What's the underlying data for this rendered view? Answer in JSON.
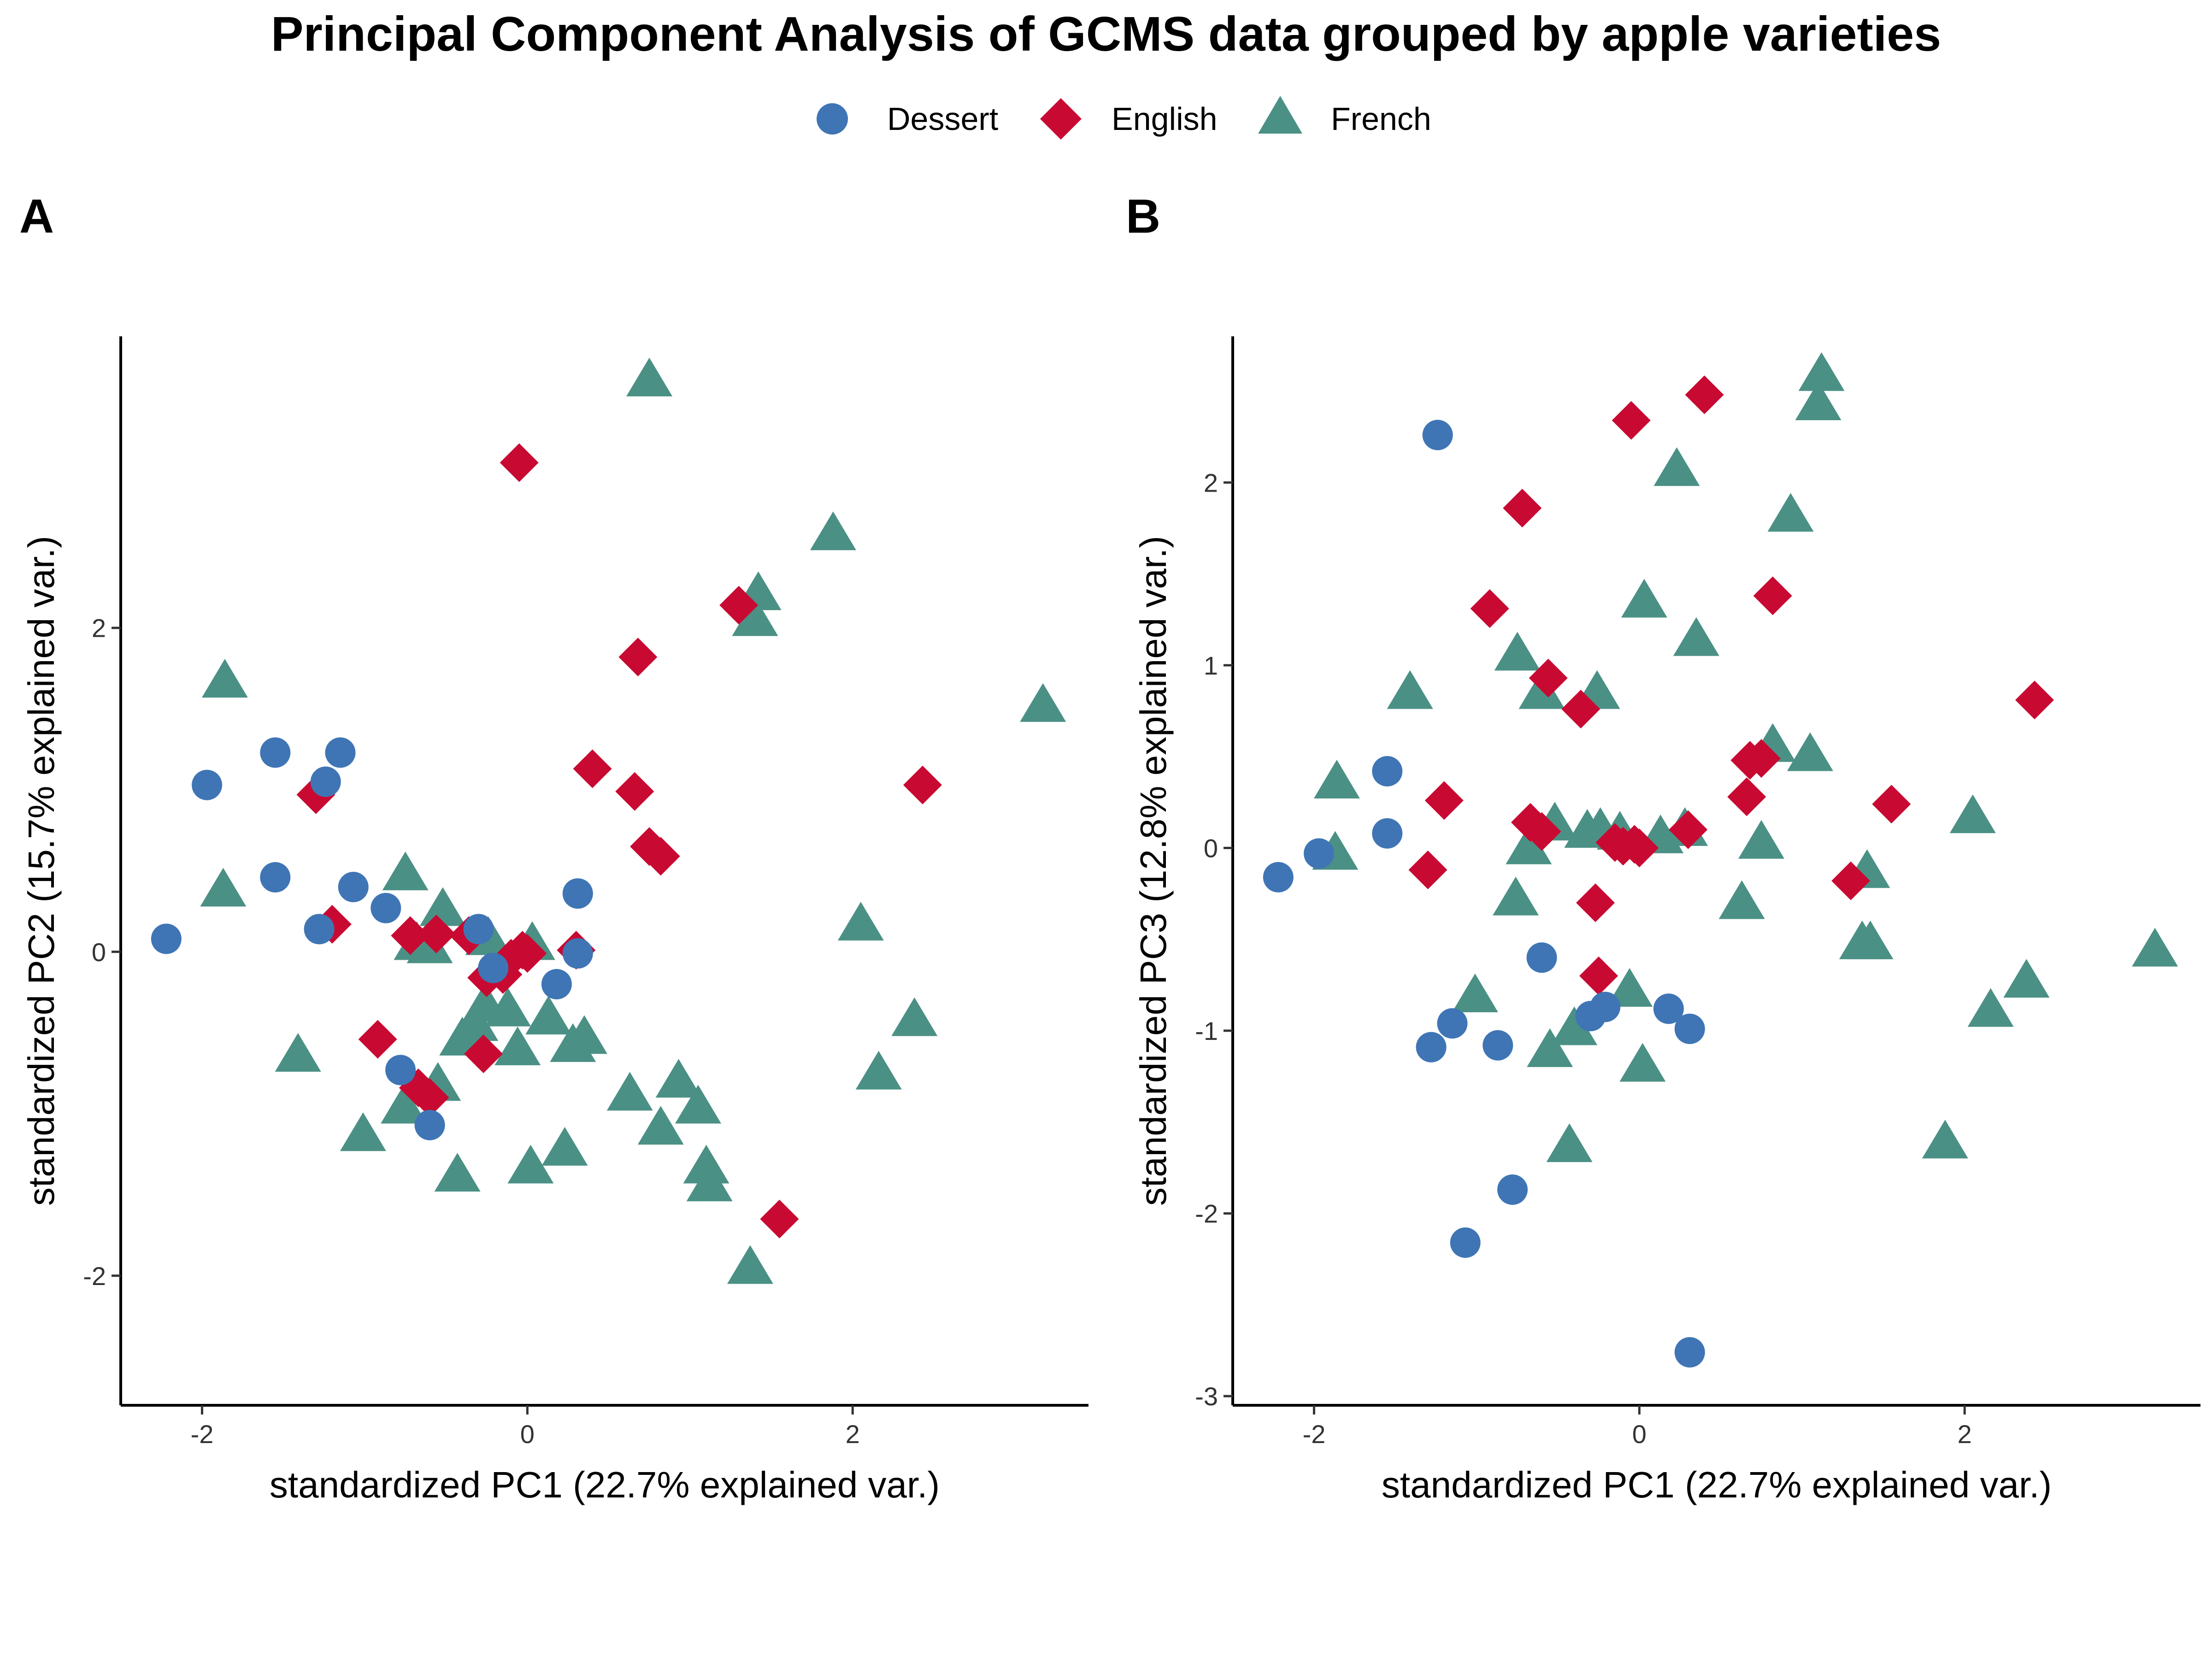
{
  "colors": {
    "Dessert": "#3F75B5",
    "English": "#C80A32",
    "French": "#4B9085"
  },
  "chart_data": {
    "title": "Principal Component Analysis of GCMS data grouped by apple varieties",
    "legend": {
      "placement": "top",
      "entries": [
        {
          "name": "Dessert",
          "shape": "circle"
        },
        {
          "name": "English",
          "shape": "diamond"
        },
        {
          "name": "French",
          "shape": "triangle"
        }
      ]
    },
    "panels": [
      {
        "tag": "A",
        "type": "scatter",
        "xlabel": "standardized PC1 (22.7% explained var.)",
        "ylabel": "standardized PC2 (15.7% explained var.)",
        "xlim": [
          -2.5,
          3.45
        ],
        "ylim": [
          -2.8,
          3.8
        ],
        "xticks": [
          -2,
          0,
          2
        ],
        "yticks": [
          -2,
          0,
          2
        ],
        "grid": false,
        "series": [
          {
            "name": "Dessert",
            "points": [
              [
                -2.22,
                0.08
              ],
              [
                -1.97,
                1.03
              ],
              [
                -1.55,
                1.23
              ],
              [
                -1.55,
                0.46
              ],
              [
                -1.28,
                0.14
              ],
              [
                -1.24,
                1.05
              ],
              [
                -1.15,
                1.23
              ],
              [
                -1.07,
                0.4
              ],
              [
                -0.87,
                0.27
              ],
              [
                -0.78,
                -0.73
              ],
              [
                -0.6,
                -1.07
              ],
              [
                -0.3,
                0.14
              ],
              [
                -0.21,
                -0.1
              ],
              [
                0.18,
                -0.2
              ],
              [
                0.31,
                0.36
              ],
              [
                0.31,
                -0.01
              ]
            ]
          },
          {
            "name": "English",
            "points": [
              [
                -1.3,
                0.97
              ],
              [
                -1.2,
                0.17
              ],
              [
                -0.92,
                -0.54
              ],
              [
                -0.72,
                0.1
              ],
              [
                -0.67,
                -0.84
              ],
              [
                -0.6,
                -0.9
              ],
              [
                -0.56,
                0.11
              ],
              [
                -0.36,
                0.1
              ],
              [
                -0.27,
                -0.63
              ],
              [
                -0.25,
                -0.16
              ],
              [
                -0.15,
                -0.14
              ],
              [
                -0.1,
                -0.04
              ],
              [
                -0.05,
                3.02
              ],
              [
                -0.03,
                0.01
              ],
              [
                0.0,
                -0.01
              ],
              [
                0.3,
                0.01
              ],
              [
                0.4,
                1.13
              ],
              [
                0.66,
                0.99
              ],
              [
                0.68,
                1.82
              ],
              [
                0.75,
                0.65
              ],
              [
                0.82,
                0.59
              ],
              [
                1.3,
                2.14
              ],
              [
                1.55,
                -1.65
              ],
              [
                2.43,
                1.03
              ]
            ]
          },
          {
            "name": "French",
            "points": [
              [
                -1.87,
                0.38
              ],
              [
                -1.86,
                1.67
              ],
              [
                -1.41,
                -0.64
              ],
              [
                -1.01,
                -1.13
              ],
              [
                -0.76,
                -0.96
              ],
              [
                -0.75,
                0.48
              ],
              [
                -0.68,
                0.05
              ],
              [
                -0.6,
                0.03
              ],
              [
                -0.55,
                -0.82
              ],
              [
                -0.52,
                0.26
              ],
              [
                -0.43,
                -1.38
              ],
              [
                -0.4,
                -0.54
              ],
              [
                -0.32,
                -0.45
              ],
              [
                -0.26,
                -0.33
              ],
              [
                -0.24,
                0.08
              ],
              [
                -0.12,
                -0.36
              ],
              [
                -0.06,
                -0.6
              ],
              [
                0.02,
                -1.33
              ],
              [
                0.03,
                0.05
              ],
              [
                0.13,
                -0.41
              ],
              [
                0.23,
                -1.22
              ],
              [
                0.28,
                -0.58
              ],
              [
                0.35,
                -0.53
              ],
              [
                0.63,
                -0.88
              ],
              [
                0.75,
                3.53
              ],
              [
                0.82,
                -1.09
              ],
              [
                0.93,
                -0.8
              ],
              [
                1.05,
                -0.96
              ],
              [
                1.1,
                -1.33
              ],
              [
                1.12,
                -1.44
              ],
              [
                1.37,
                -1.95
              ],
              [
                1.4,
                2.05
              ],
              [
                1.42,
                2.21
              ],
              [
                1.88,
                2.58
              ],
              [
                2.05,
                0.17
              ],
              [
                2.16,
                -0.75
              ],
              [
                2.38,
                -0.42
              ],
              [
                3.17,
                1.52
              ]
            ]
          }
        ]
      },
      {
        "tag": "B",
        "type": "scatter",
        "xlabel": "standardized PC1 (22.7% explained var.)",
        "ylabel": "standardized PC3 (12.8% explained var.)",
        "xlim": [
          -2.5,
          3.45
        ],
        "ylim": [
          -3.05,
          2.8
        ],
        "xticks": [
          -2,
          0,
          2
        ],
        "yticks": [
          -3,
          -2,
          -1,
          0,
          1,
          2
        ],
        "grid": false,
        "series": [
          {
            "name": "Dessert",
            "points": [
              [
                -2.22,
                -0.16
              ],
              [
                -1.97,
                -0.03
              ],
              [
                -1.55,
                0.42
              ],
              [
                -1.55,
                0.08
              ],
              [
                -1.28,
                -1.09
              ],
              [
                -1.24,
                2.26
              ],
              [
                -1.15,
                -0.96
              ],
              [
                -1.07,
                -2.16
              ],
              [
                -0.87,
                -1.08
              ],
              [
                -0.78,
                -1.87
              ],
              [
                -0.6,
                -0.6
              ],
              [
                -0.3,
                -0.92
              ],
              [
                -0.21,
                -0.87
              ],
              [
                0.18,
                -0.88
              ],
              [
                0.31,
                -0.99
              ],
              [
                0.31,
                -2.76
              ]
            ]
          },
          {
            "name": "English",
            "points": [
              [
                -1.3,
                -0.12
              ],
              [
                -1.2,
                0.26
              ],
              [
                -0.92,
                1.31
              ],
              [
                -0.72,
                1.86
              ],
              [
                -0.67,
                0.14
              ],
              [
                -0.6,
                0.09
              ],
              [
                -0.56,
                0.93
              ],
              [
                -0.36,
                0.76
              ],
              [
                -0.27,
                -0.3
              ],
              [
                -0.25,
                -0.7
              ],
              [
                -0.15,
                0.03
              ],
              [
                -0.1,
                0.01
              ],
              [
                -0.05,
                2.34
              ],
              [
                -0.03,
                0.02
              ],
              [
                0.0,
                0.0
              ],
              [
                0.3,
                0.1
              ],
              [
                0.4,
                2.48
              ],
              [
                0.66,
                0.28
              ],
              [
                0.68,
                0.48
              ],
              [
                0.75,
                0.49
              ],
              [
                0.82,
                1.38
              ],
              [
                1.3,
                -0.18
              ],
              [
                1.55,
                0.24
              ],
              [
                2.43,
                0.81
              ]
            ]
          },
          {
            "name": "French",
            "points": [
              [
                -1.87,
                -0.03
              ],
              [
                -1.86,
                0.36
              ],
              [
                -1.41,
                0.85
              ],
              [
                -1.01,
                -0.81
              ],
              [
                -0.76,
                -0.28
              ],
              [
                -0.75,
                1.06
              ],
              [
                -0.68,
                0.0
              ],
              [
                -0.6,
                0.85
              ],
              [
                -0.55,
                -1.11
              ],
              [
                -0.52,
                0.13
              ],
              [
                -0.43,
                -1.63
              ],
              [
                -0.4,
                -0.99
              ],
              [
                -0.32,
                0.09
              ],
              [
                -0.26,
                0.85
              ],
              [
                -0.24,
                0.1
              ],
              [
                -0.12,
                0.08
              ],
              [
                -0.06,
                -0.78
              ],
              [
                0.02,
                -1.19
              ],
              [
                0.03,
                1.35
              ],
              [
                0.13,
                0.06
              ],
              [
                0.23,
                2.07
              ],
              [
                0.28,
                0.1
              ],
              [
                0.35,
                1.14
              ],
              [
                0.63,
                -0.3
              ],
              [
                0.75,
                0.03
              ],
              [
                0.82,
                0.56
              ],
              [
                0.93,
                1.82
              ],
              [
                1.05,
                0.51
              ],
              [
                1.1,
                2.43
              ],
              [
                1.12,
                2.59
              ],
              [
                1.37,
                -0.52
              ],
              [
                1.4,
                -0.13
              ],
              [
                1.42,
                -0.52
              ],
              [
                1.88,
                -1.61
              ],
              [
                2.05,
                0.17
              ],
              [
                2.16,
                -0.89
              ],
              [
                2.38,
                -0.73
              ],
              [
                3.17,
                -0.56
              ]
            ]
          }
        ]
      }
    ]
  }
}
